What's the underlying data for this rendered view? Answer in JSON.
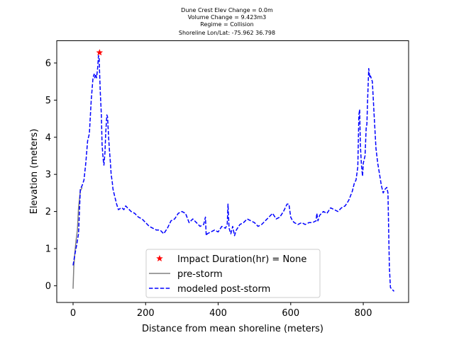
{
  "chart_data": {
    "type": "line",
    "title_lines": [
      "Dune Crest Elev Change = 0.0m",
      "Volume Change = 9.423m3",
      "Regime = Collision",
      "Shoreline Lon/Lat: -75.962 36.798"
    ],
    "xlabel": "Distance from mean shoreline (meters)",
    "ylabel": "Elevation (meters)",
    "xlim": [
      -45,
      925
    ],
    "ylim": [
      -0.45,
      6.6
    ],
    "xticks": [
      0,
      200,
      400,
      600,
      800
    ],
    "yticks": [
      0,
      1,
      2,
      3,
      4,
      5,
      6
    ],
    "legend_position": "lower center",
    "series": [
      {
        "name": "pre-storm",
        "color": "#808080",
        "style": "solid",
        "x": [
          0,
          2,
          5,
          8,
          12,
          15,
          20,
          25
        ],
        "y": [
          -0.08,
          0.5,
          0.9,
          1.2,
          1.5,
          2.1,
          2.55,
          2.65
        ]
      },
      {
        "name": "modeled post-storm",
        "color": "#0000ff",
        "style": "dashed",
        "x": [
          0,
          5,
          10,
          15,
          18,
          20,
          25,
          30,
          35,
          40,
          45,
          50,
          55,
          58,
          60,
          62,
          65,
          68,
          70,
          72,
          73,
          75,
          78,
          80,
          83,
          85,
          88,
          90,
          93,
          95,
          98,
          100,
          103,
          105,
          108,
          110,
          115,
          120,
          125,
          130,
          135,
          140,
          145,
          150,
          160,
          170,
          180,
          190,
          200,
          210,
          220,
          230,
          240,
          250,
          260,
          270,
          280,
          290,
          300,
          310,
          320,
          330,
          340,
          350,
          360,
          365,
          367,
          370,
          380,
          390,
          400,
          410,
          420,
          425,
          427,
          430,
          435,
          440,
          445,
          450,
          460,
          470,
          480,
          490,
          500,
          510,
          520,
          530,
          540,
          550,
          560,
          570,
          580,
          590,
          595,
          600,
          605,
          610,
          620,
          630,
          640,
          650,
          660,
          670,
          672,
          675,
          680,
          690,
          700,
          710,
          720,
          730,
          740,
          750,
          760,
          770,
          775,
          780,
          785,
          788,
          790,
          792,
          795,
          798,
          800,
          805,
          808,
          810,
          812,
          815,
          818,
          820,
          825,
          830,
          835,
          840,
          845,
          850,
          855,
          860,
          865,
          868,
          870,
          872,
          875,
          880,
          885
        ],
        "y": [
          0.55,
          0.85,
          1.1,
          1.4,
          2.1,
          2.6,
          2.7,
          2.85,
          3.3,
          3.9,
          4.1,
          5.0,
          5.6,
          5.7,
          5.6,
          5.7,
          5.6,
          5.9,
          6.2,
          6.15,
          5.8,
          5.2,
          4.6,
          3.8,
          3.4,
          3.25,
          3.6,
          4.1,
          4.6,
          4.55,
          4.0,
          3.7,
          3.3,
          3.0,
          2.8,
          2.6,
          2.4,
          2.2,
          2.05,
          2.08,
          2.1,
          2.05,
          2.15,
          2.1,
          2.0,
          1.95,
          1.85,
          1.8,
          1.7,
          1.6,
          1.55,
          1.5,
          1.5,
          1.4,
          1.55,
          1.75,
          1.8,
          1.95,
          2.0,
          1.95,
          1.7,
          1.8,
          1.7,
          1.6,
          1.65,
          1.85,
          1.35,
          1.4,
          1.45,
          1.5,
          1.45,
          1.6,
          1.55,
          1.65,
          2.2,
          1.55,
          1.4,
          1.6,
          1.35,
          1.5,
          1.65,
          1.7,
          1.8,
          1.75,
          1.7,
          1.6,
          1.65,
          1.75,
          1.85,
          1.95,
          1.8,
          1.85,
          2.0,
          2.2,
          2.2,
          1.85,
          1.75,
          1.7,
          1.65,
          1.7,
          1.65,
          1.7,
          1.7,
          1.75,
          1.95,
          1.75,
          1.9,
          2.0,
          1.95,
          2.1,
          2.05,
          2.0,
          2.1,
          2.15,
          2.3,
          2.55,
          2.75,
          2.85,
          3.2,
          4.6,
          4.75,
          3.8,
          3.25,
          2.95,
          3.3,
          3.5,
          4.25,
          4.35,
          5.0,
          5.85,
          5.6,
          5.65,
          5.5,
          4.6,
          3.7,
          3.3,
          3.0,
          2.7,
          2.5,
          2.6,
          2.65,
          2.5,
          1.5,
          0.5,
          -0.05,
          -0.1,
          -0.15
        ]
      }
    ],
    "markers": [
      {
        "name": "Impact Duration(hr) = None",
        "color": "#ff0000",
        "marker": "star",
        "x": 73,
        "y": 6.28
      }
    ]
  }
}
